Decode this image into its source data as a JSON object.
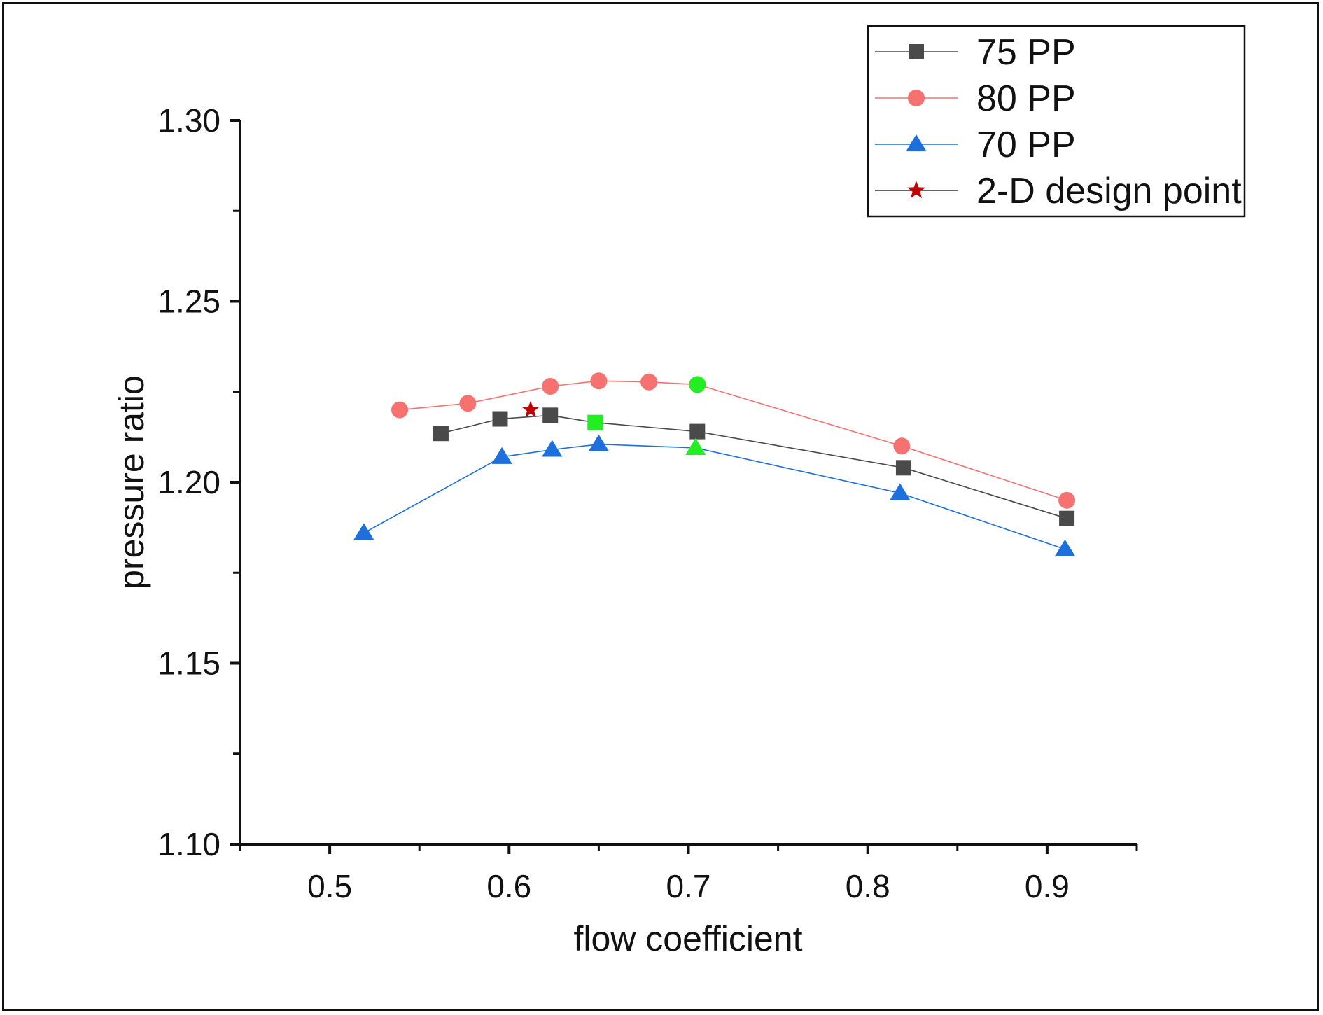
{
  "chart_data": {
    "type": "line",
    "xlabel": "flow coefficient",
    "ylabel": "pressure ratio",
    "xlim": [
      0.45,
      0.95
    ],
    "ylim": [
      1.1,
      1.3
    ],
    "x_ticks": [
      "0.5",
      "0.6",
      "0.7",
      "0.8",
      "0.9"
    ],
    "y_ticks": [
      "1.10",
      "1.15",
      "1.20",
      "1.25",
      "1.30"
    ],
    "grid": false,
    "legend_position": "top-right",
    "series": [
      {
        "name": "75 PP",
        "marker": "square",
        "color": "#4a4a4a",
        "x": [
          0.562,
          0.595,
          0.623,
          0.648,
          0.705,
          0.82,
          0.911
        ],
        "y": [
          1.2135,
          1.2175,
          1.2185,
          1.2165,
          1.214,
          1.204,
          1.19
        ],
        "highlight_index": 3
      },
      {
        "name": "80 PP",
        "marker": "circle",
        "color": "#f87171",
        "x": [
          0.539,
          0.577,
          0.623,
          0.65,
          0.678,
          0.705,
          0.819,
          0.911
        ],
        "y": [
          1.22,
          1.2218,
          1.2265,
          1.228,
          1.2277,
          1.227,
          1.21,
          1.195
        ],
        "highlight_index": 5
      },
      {
        "name": "70 PP",
        "marker": "triangle",
        "color": "#1d6fdc",
        "x": [
          0.519,
          0.596,
          0.624,
          0.65,
          0.704,
          0.818,
          0.91
        ],
        "y": [
          1.186,
          1.207,
          1.209,
          1.2105,
          1.2095,
          1.197,
          1.1815
        ],
        "highlight_index": 4
      },
      {
        "name": "2-D design point",
        "marker": "star",
        "color": "#c00000",
        "x": [
          0.612
        ],
        "y": [
          1.22
        ],
        "line": false
      }
    ],
    "highlight_color": "#22ee22"
  }
}
